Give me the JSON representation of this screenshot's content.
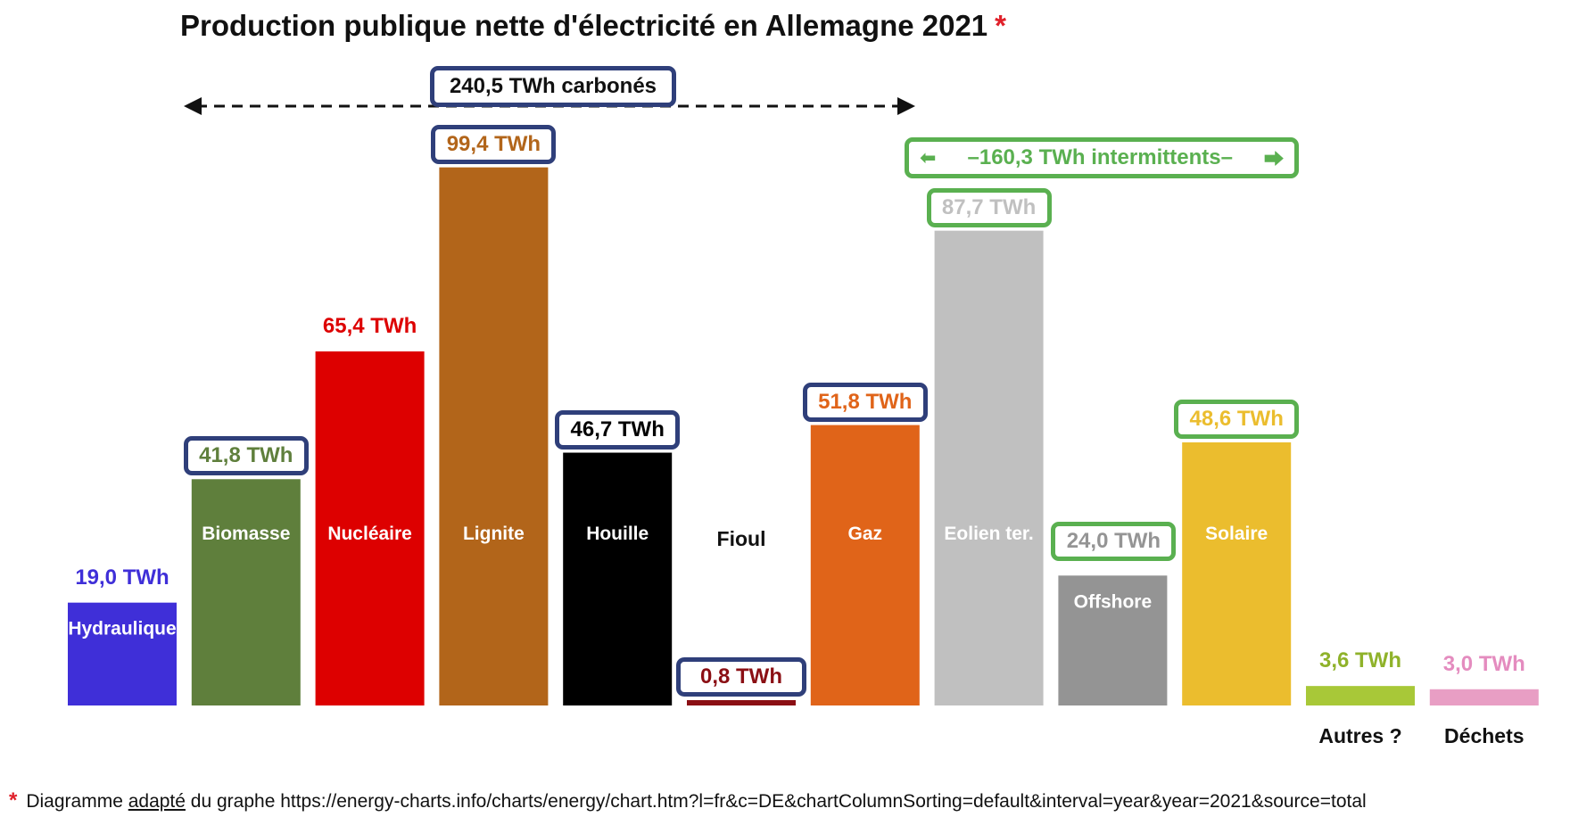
{
  "title": "Production publique nette d'électricité en Allemagne 2021",
  "title_marker": "*",
  "chart_data": {
    "type": "bar",
    "title": "Production publique nette d'électricité en Allemagne 2021",
    "unit": "TWh",
    "categories": [
      "Hydraulique",
      "Biomasse",
      "Nucléaire",
      "Lignite",
      "Houille",
      "Fioul",
      "Gaz",
      "Eolien ter.",
      "Offshore",
      "Solaire",
      "Autres ?",
      "Déchets"
    ],
    "values": [
      19.0,
      41.8,
      65.4,
      99.4,
      46.7,
      0.8,
      51.8,
      87.7,
      24.0,
      48.6,
      3.6,
      3.0
    ],
    "value_labels": [
      "19,0 TWh",
      "41,8 TWh",
      "65,4 TWh",
      "99,4 TWh",
      "46,7 TWh",
      "0,8 TWh",
      "51,8 TWh",
      "87,7 TWh",
      "24,0 TWh",
      "48,6 TWh",
      "3,6 TWh",
      "3,0 TWh"
    ],
    "colors": [
      "#3f2fd8",
      "#5f7f3c",
      "#dd0000",
      "#b2651a",
      "#000000",
      "#8b0f14",
      "#e06419",
      "#c0c0c0",
      "#949494",
      "#ebbd2e",
      "#a8c838",
      "#e89ec4"
    ],
    "label_colors": [
      "#3f2fd8",
      "#5f7f3c",
      "#dd0000",
      "#b2651a",
      "#000000",
      "#8b0f14",
      "#e06419",
      "#c0c0c0",
      "#949494",
      "#ebbd2e",
      "#8fb22a",
      "#e48cbf"
    ],
    "inner_label_colors": [
      "#ffffff",
      "#ffffff",
      "#ffffff",
      "#ffffff",
      "#ffffff",
      "#111111",
      "#ffffff",
      "#ffffff",
      "#ffffff",
      "#ffffff",
      "#111111",
      "#111111"
    ],
    "boxed": [
      "none",
      "blue",
      "none",
      "blue",
      "blue",
      "blue",
      "blue",
      "green",
      "green",
      "green",
      "none",
      "none"
    ],
    "groups": [
      {
        "label": "240,5 TWh carbonés",
        "value": 240.5,
        "style": "blue",
        "members": [
          "Lignite",
          "Houille",
          "Fioul",
          "Gaz",
          "Biomasse"
        ]
      },
      {
        "label": "160,3 TWh intermittents",
        "value": 160.3,
        "style": "green",
        "members": [
          "Eolien ter.",
          "Offshore",
          "Solaire"
        ]
      }
    ]
  },
  "footnote": {
    "marker": "*",
    "prefix": "Diagramme",
    "underlined": "adapté",
    "rest": "du graphe https://energy-charts.info/charts/energy/chart.htm?l=fr&c=DE&chartColumnSorting=default&interval=year&year=2021&source=total"
  }
}
